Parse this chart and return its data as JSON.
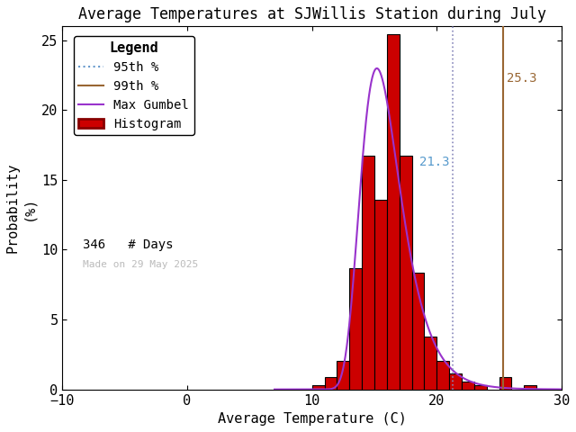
{
  "title": "Average Temperatures at SJWillis Station during July",
  "xlabel": "Average Temperature (C)",
  "ylabel": "Probability\n(%)",
  "xlim": [
    -10,
    30
  ],
  "ylim": [
    0,
    26
  ],
  "xticks": [
    -10,
    0,
    10,
    20,
    30
  ],
  "yticks": [
    0,
    5,
    10,
    15,
    20,
    25
  ],
  "bar_color": "#cc0000",
  "bar_edge_color": "#000000",
  "gumbel_color": "#9933cc",
  "p95_color": "#8888bb",
  "p99_color": "#996633",
  "p95_linestyle": "dotted",
  "p99_linestyle": "solid",
  "p95_value": 21.3,
  "p99_value": 25.3,
  "n_days": 346,
  "made_on": "Made on 29 May 2025",
  "bin_left_edges": [
    10,
    11,
    12,
    13,
    14,
    15,
    16,
    17,
    18,
    19,
    20,
    21,
    22,
    23,
    24,
    25,
    26,
    27,
    28
  ],
  "bin_heights": [
    0.29,
    0.87,
    2.02,
    8.67,
    16.76,
    13.58,
    25.43,
    16.76,
    8.38,
    3.76,
    2.02,
    1.16,
    0.58,
    0.29,
    0.0,
    0.87,
    0.0,
    0.29,
    0.0
  ],
  "background_color": "#ffffff",
  "title_fontsize": 12,
  "axis_fontsize": 11,
  "legend_fontsize": 10,
  "tick_fontsize": 11,
  "gumbel_mu": 15.2,
  "gumbel_beta": 1.6
}
